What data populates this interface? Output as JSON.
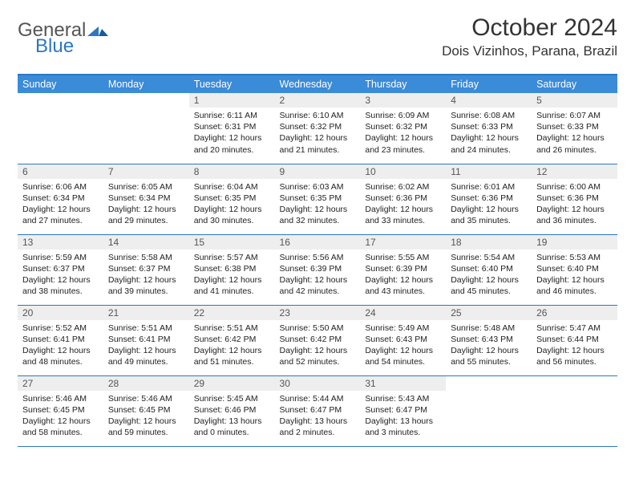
{
  "logo": {
    "word1": "General",
    "word2": "Blue"
  },
  "title": "October 2024",
  "location": "Dois Vizinhos, Parana, Brazil",
  "colors": {
    "accent": "#3a8bd8",
    "rule": "#2b78c2",
    "daybg": "#eeeeee"
  },
  "day_headers": [
    "Sunday",
    "Monday",
    "Tuesday",
    "Wednesday",
    "Thursday",
    "Friday",
    "Saturday"
  ],
  "first_weekday": 2,
  "days": [
    {
      "n": 1,
      "sr": "6:11 AM",
      "ss": "6:31 PM",
      "dl": "12 hours and 20 minutes."
    },
    {
      "n": 2,
      "sr": "6:10 AM",
      "ss": "6:32 PM",
      "dl": "12 hours and 21 minutes."
    },
    {
      "n": 3,
      "sr": "6:09 AM",
      "ss": "6:32 PM",
      "dl": "12 hours and 23 minutes."
    },
    {
      "n": 4,
      "sr": "6:08 AM",
      "ss": "6:33 PM",
      "dl": "12 hours and 24 minutes."
    },
    {
      "n": 5,
      "sr": "6:07 AM",
      "ss": "6:33 PM",
      "dl": "12 hours and 26 minutes."
    },
    {
      "n": 6,
      "sr": "6:06 AM",
      "ss": "6:34 PM",
      "dl": "12 hours and 27 minutes."
    },
    {
      "n": 7,
      "sr": "6:05 AM",
      "ss": "6:34 PM",
      "dl": "12 hours and 29 minutes."
    },
    {
      "n": 8,
      "sr": "6:04 AM",
      "ss": "6:35 PM",
      "dl": "12 hours and 30 minutes."
    },
    {
      "n": 9,
      "sr": "6:03 AM",
      "ss": "6:35 PM",
      "dl": "12 hours and 32 minutes."
    },
    {
      "n": 10,
      "sr": "6:02 AM",
      "ss": "6:36 PM",
      "dl": "12 hours and 33 minutes."
    },
    {
      "n": 11,
      "sr": "6:01 AM",
      "ss": "6:36 PM",
      "dl": "12 hours and 35 minutes."
    },
    {
      "n": 12,
      "sr": "6:00 AM",
      "ss": "6:36 PM",
      "dl": "12 hours and 36 minutes."
    },
    {
      "n": 13,
      "sr": "5:59 AM",
      "ss": "6:37 PM",
      "dl": "12 hours and 38 minutes."
    },
    {
      "n": 14,
      "sr": "5:58 AM",
      "ss": "6:37 PM",
      "dl": "12 hours and 39 minutes."
    },
    {
      "n": 15,
      "sr": "5:57 AM",
      "ss": "6:38 PM",
      "dl": "12 hours and 41 minutes."
    },
    {
      "n": 16,
      "sr": "5:56 AM",
      "ss": "6:39 PM",
      "dl": "12 hours and 42 minutes."
    },
    {
      "n": 17,
      "sr": "5:55 AM",
      "ss": "6:39 PM",
      "dl": "12 hours and 43 minutes."
    },
    {
      "n": 18,
      "sr": "5:54 AM",
      "ss": "6:40 PM",
      "dl": "12 hours and 45 minutes."
    },
    {
      "n": 19,
      "sr": "5:53 AM",
      "ss": "6:40 PM",
      "dl": "12 hours and 46 minutes."
    },
    {
      "n": 20,
      "sr": "5:52 AM",
      "ss": "6:41 PM",
      "dl": "12 hours and 48 minutes."
    },
    {
      "n": 21,
      "sr": "5:51 AM",
      "ss": "6:41 PM",
      "dl": "12 hours and 49 minutes."
    },
    {
      "n": 22,
      "sr": "5:51 AM",
      "ss": "6:42 PM",
      "dl": "12 hours and 51 minutes."
    },
    {
      "n": 23,
      "sr": "5:50 AM",
      "ss": "6:42 PM",
      "dl": "12 hours and 52 minutes."
    },
    {
      "n": 24,
      "sr": "5:49 AM",
      "ss": "6:43 PM",
      "dl": "12 hours and 54 minutes."
    },
    {
      "n": 25,
      "sr": "5:48 AM",
      "ss": "6:43 PM",
      "dl": "12 hours and 55 minutes."
    },
    {
      "n": 26,
      "sr": "5:47 AM",
      "ss": "6:44 PM",
      "dl": "12 hours and 56 minutes."
    },
    {
      "n": 27,
      "sr": "5:46 AM",
      "ss": "6:45 PM",
      "dl": "12 hours and 58 minutes."
    },
    {
      "n": 28,
      "sr": "5:46 AM",
      "ss": "6:45 PM",
      "dl": "12 hours and 59 minutes."
    },
    {
      "n": 29,
      "sr": "5:45 AM",
      "ss": "6:46 PM",
      "dl": "13 hours and 0 minutes."
    },
    {
      "n": 30,
      "sr": "5:44 AM",
      "ss": "6:47 PM",
      "dl": "13 hours and 2 minutes."
    },
    {
      "n": 31,
      "sr": "5:43 AM",
      "ss": "6:47 PM",
      "dl": "13 hours and 3 minutes."
    }
  ],
  "labels": {
    "sunrise": "Sunrise:",
    "sunset": "Sunset:",
    "daylight": "Daylight:"
  }
}
